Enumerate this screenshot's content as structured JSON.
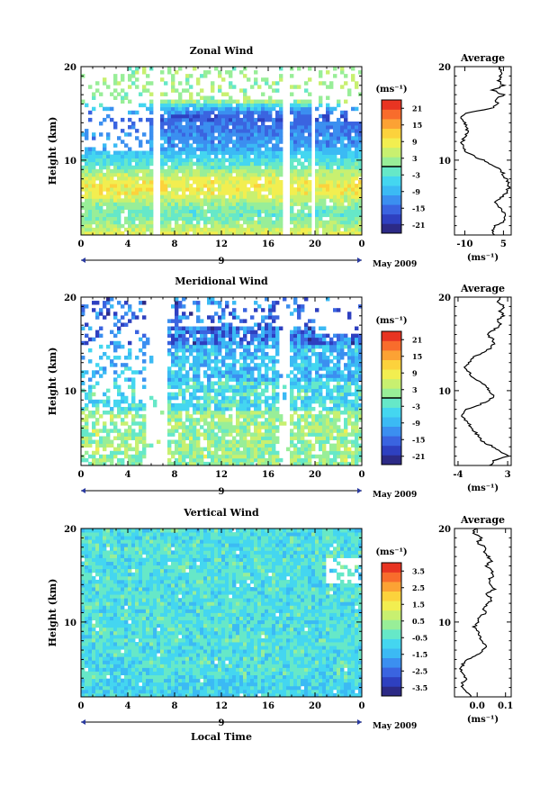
{
  "figure": {
    "xlabel_bottom": "Local Time",
    "day_label": "9",
    "month_label": "May 2009",
    "colorbar_unit": "(ms⁻¹)",
    "profile_unit": "(ms⁻¹)",
    "palette": [
      "#2c2a86",
      "#2e40c0",
      "#3a64e0",
      "#3b8ff0",
      "#3bbaf4",
      "#44d6f0",
      "#66e8c8",
      "#98ee98",
      "#c8f070",
      "#f2ee50",
      "#fcd23c",
      "#fca234",
      "#f86c2c",
      "#e83422"
    ]
  },
  "chart_data": [
    {
      "type": "heatmap",
      "title": "Zonal Wind",
      "xlabel": "",
      "ylabel": "Height (km)",
      "xlim": [
        0,
        24
      ],
      "ylim": [
        2,
        20
      ],
      "x_ticks": [
        "0",
        "4",
        "8",
        "12",
        "16",
        "20",
        "0"
      ],
      "y_ticks": [
        "10",
        "20"
      ],
      "colorbar": {
        "range": [
          -24,
          24
        ],
        "ticks": [
          "21",
          "15",
          "9",
          "3",
          "-3",
          "-9",
          "-15",
          "-21"
        ],
        "zero_line": true
      },
      "profile": {
        "title": "Average",
        "xlim": [
          -14,
          8
        ],
        "x_ticks": [
          "-10",
          "5"
        ],
        "y_ticks": [
          "10",
          "20"
        ],
        "heights": [
          2,
          2.5,
          3,
          3.5,
          4,
          4.5,
          5,
          5.5,
          6,
          6.5,
          7,
          7.5,
          8,
          8.5,
          9,
          9.5,
          10,
          10.5,
          11,
          11.5,
          12,
          12.5,
          13,
          13.5,
          14,
          14.5,
          15,
          15.5,
          16,
          16.5,
          17,
          17.5,
          18,
          18.5,
          19,
          19.5,
          20
        ],
        "values": [
          1,
          0.5,
          2,
          5.5,
          6,
          5,
          3,
          2,
          4,
          6,
          7,
          7,
          6,
          5,
          4,
          1,
          -3,
          -7,
          -10,
          -11,
          -11,
          -10,
          -9,
          -9,
          -10,
          -12,
          -10,
          0,
          3,
          2,
          5,
          1,
          5,
          3,
          4,
          4,
          3
        ]
      }
    },
    {
      "type": "heatmap",
      "title": "Meridional Wind",
      "xlabel": "",
      "ylabel": "Height (km)",
      "xlim": [
        0,
        24
      ],
      "ylim": [
        2,
        20
      ],
      "x_ticks": [
        "0",
        "4",
        "8",
        "12",
        "16",
        "20",
        "0"
      ],
      "y_ticks": [
        "10",
        "20"
      ],
      "colorbar": {
        "range": [
          -24,
          24
        ],
        "ticks": [
          "21",
          "15",
          "9",
          "3",
          "-3",
          "-9",
          "-15",
          "-21"
        ],
        "zero_line": true
      },
      "profile": {
        "title": "Average",
        "xlim": [
          -4.5,
          3.5
        ],
        "x_ticks": [
          "-4",
          "3"
        ],
        "y_ticks": [
          "10",
          "20"
        ],
        "heights": [
          2,
          2.5,
          3,
          3.5,
          4,
          4.5,
          5,
          5.5,
          6,
          6.5,
          7,
          7.5,
          8,
          8.5,
          9,
          9.5,
          10,
          10.5,
          11,
          11.5,
          12,
          12.5,
          13,
          13.5,
          14,
          14.5,
          15,
          15.5,
          16,
          16.5,
          17,
          17.5,
          18,
          18.5,
          19,
          19.5,
          20
        ],
        "values": [
          0.5,
          1,
          3,
          2,
          1,
          -0.5,
          -1,
          -1.5,
          -2,
          -2.5,
          -3,
          -3.5,
          -3,
          -1,
          0.5,
          1,
          0.5,
          0,
          -1,
          -2,
          -2.5,
          -3,
          -2.5,
          -2,
          -0.5,
          0.5,
          1,
          1,
          0,
          1,
          2,
          1.5,
          2.5,
          2,
          2.5,
          1.5,
          2
        ]
      }
    },
    {
      "type": "heatmap",
      "title": "Vertical Wind",
      "xlabel": "Local Time",
      "ylabel": "Height (km)",
      "xlim": [
        0,
        24
      ],
      "ylim": [
        2,
        20
      ],
      "x_ticks": [
        "0",
        "4",
        "8",
        "12",
        "16",
        "20",
        "0"
      ],
      "y_ticks": [
        "10",
        "20"
      ],
      "colorbar": {
        "range": [
          -4,
          4
        ],
        "ticks": [
          "3.5",
          "2.5",
          "1.5",
          "0.5",
          "-0.5",
          "-1.5",
          "-2.5",
          "-3.5"
        ],
        "zero_line": false
      },
      "profile": {
        "title": "Average",
        "xlim": [
          -0.08,
          0.12
        ],
        "x_ticks": [
          "0.0",
          "0.1"
        ],
        "y_ticks": [
          "10",
          "20"
        ],
        "heights": [
          2,
          2.5,
          3,
          3.5,
          4,
          4.5,
          5,
          5.5,
          6,
          6.5,
          7,
          7.5,
          8,
          8.5,
          9,
          9.5,
          10,
          10.5,
          11,
          11.5,
          12,
          12.5,
          13,
          13.5,
          14,
          14.5,
          15,
          15.5,
          16,
          16.5,
          17,
          17.5,
          18,
          18.5,
          19,
          19.5,
          20
        ],
        "values": [
          -0.02,
          -0.04,
          -0.05,
          -0.05,
          -0.04,
          -0.05,
          -0.06,
          -0.05,
          -0.03,
          0.0,
          0.02,
          0.03,
          0.02,
          0.01,
          0.0,
          -0.01,
          0.0,
          0.01,
          0.03,
          0.02,
          0.04,
          0.05,
          0.03,
          0.06,
          0.05,
          0.04,
          0.06,
          0.05,
          0.03,
          0.05,
          0.04,
          0.02,
          0.03,
          0.0,
          0.02,
          -0.02,
          0.0
        ]
      }
    }
  ]
}
